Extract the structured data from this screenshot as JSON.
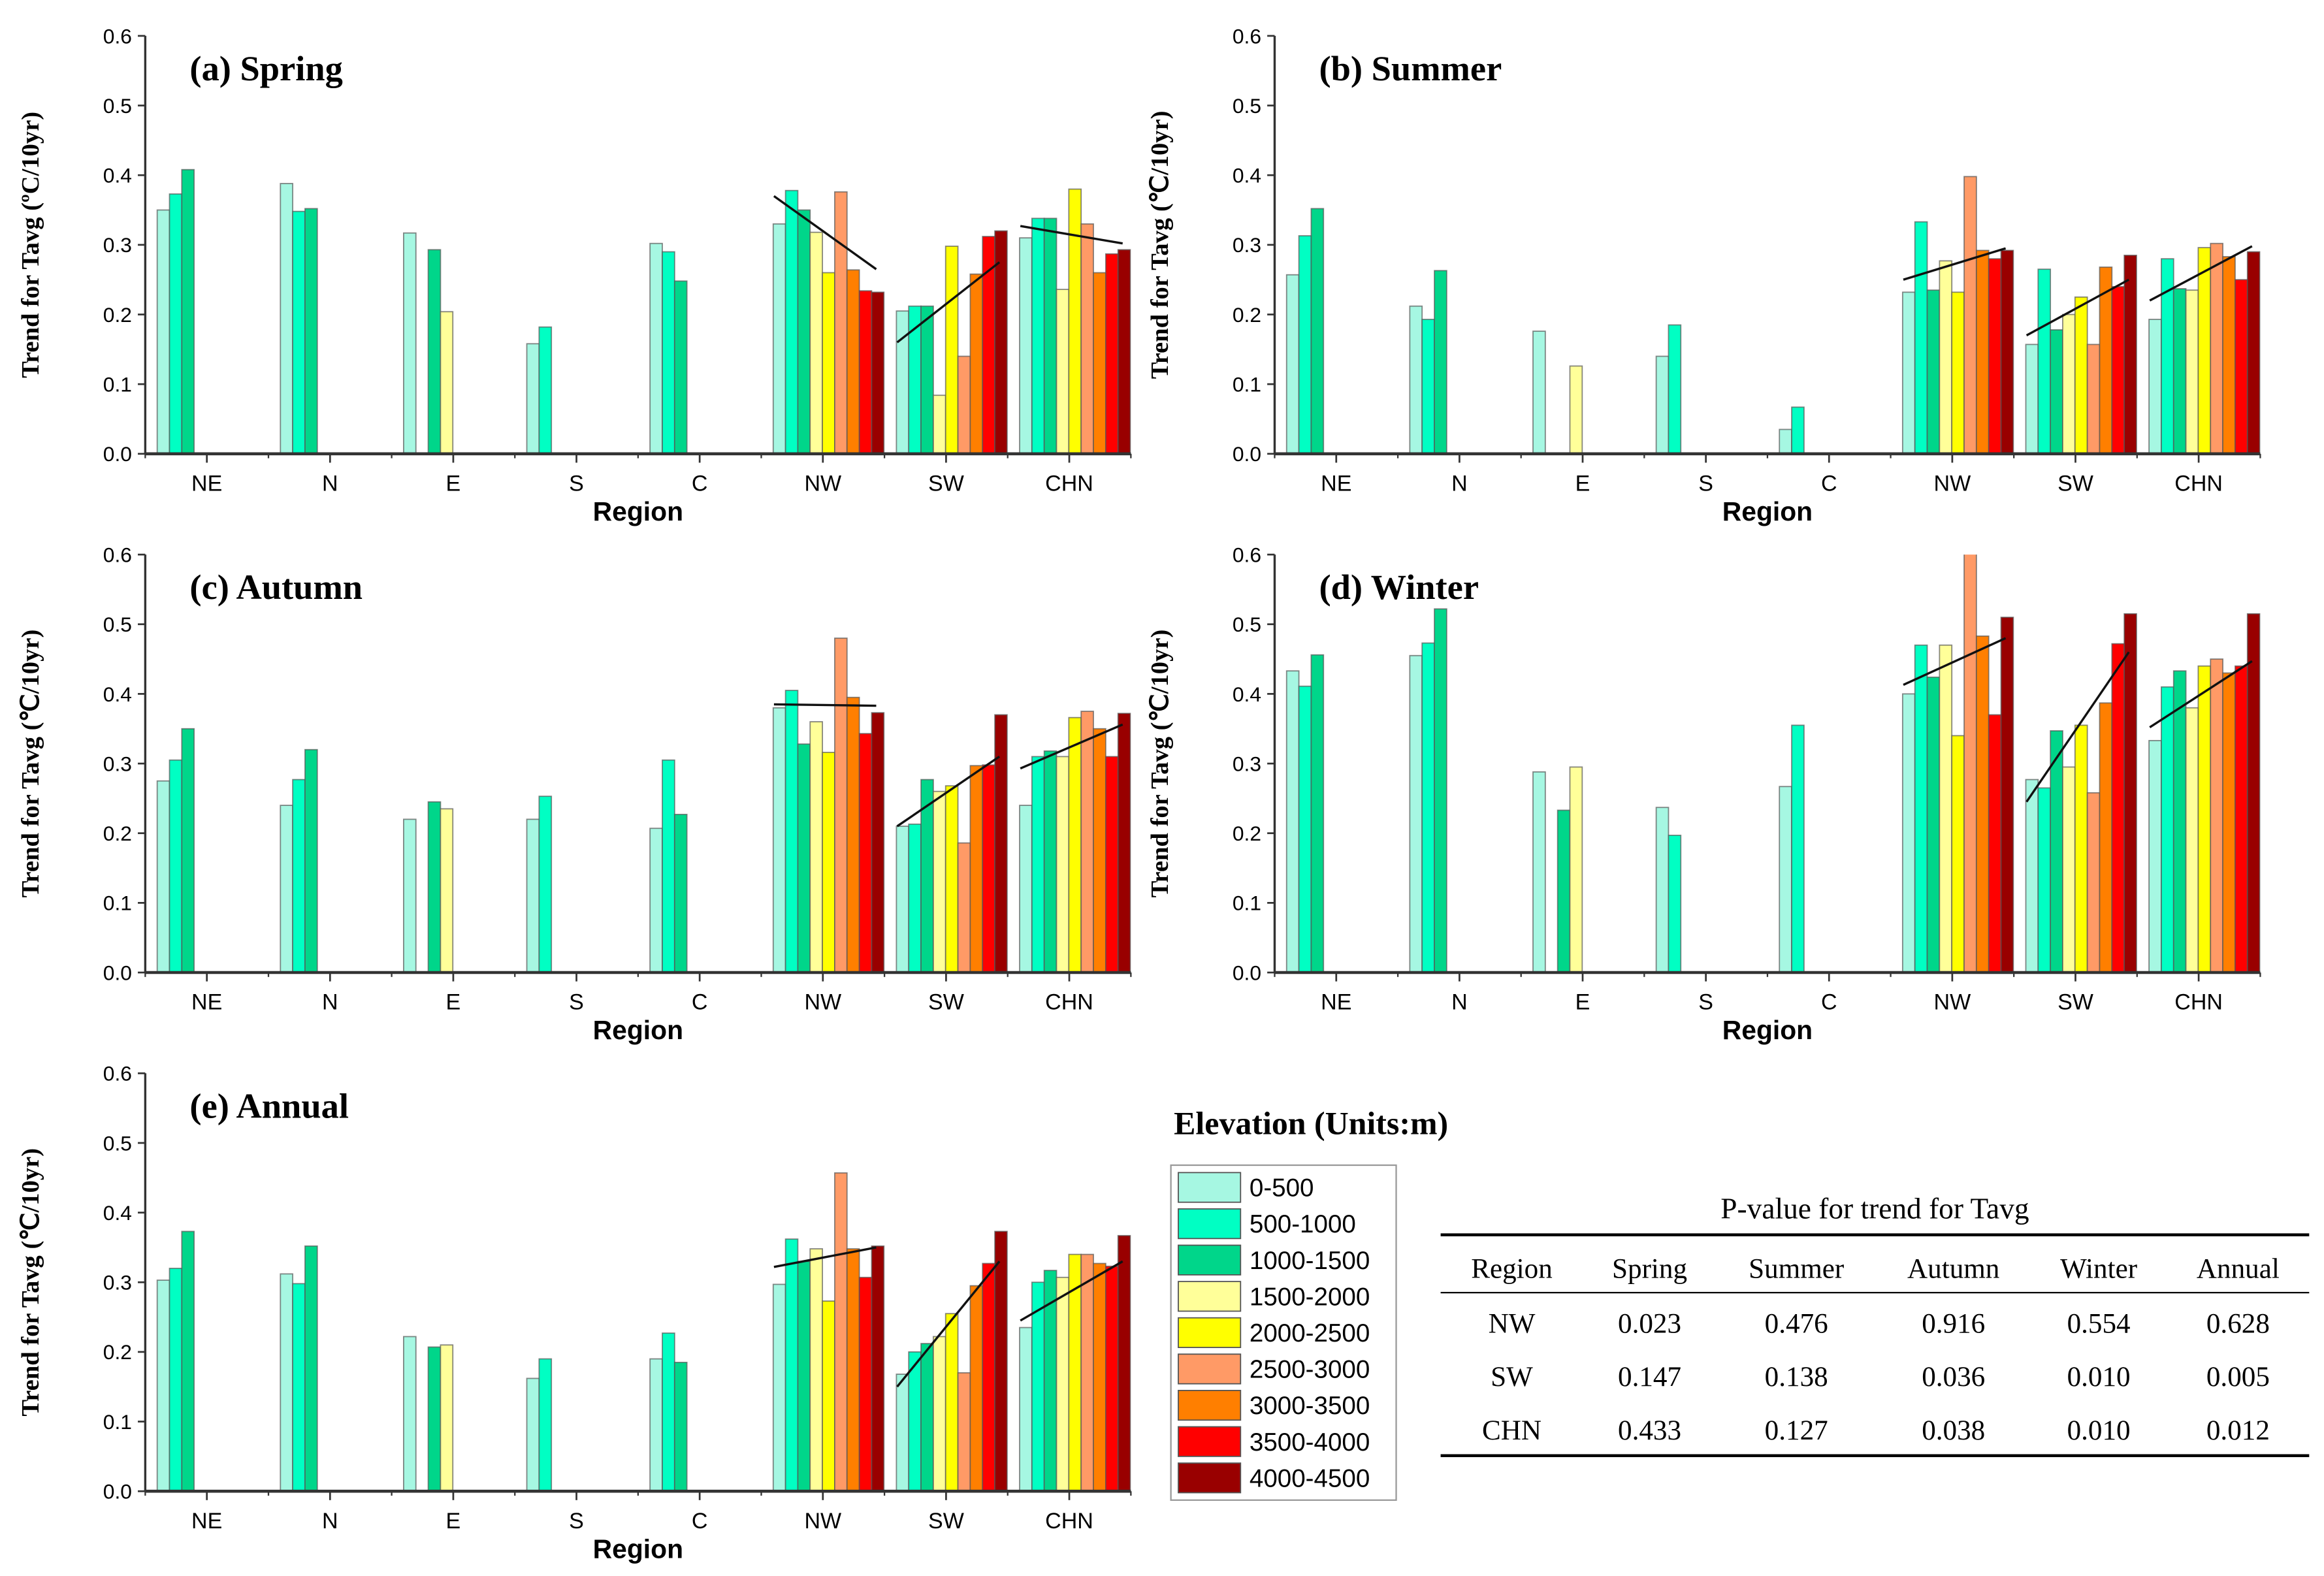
{
  "legend": {
    "title": "Elevation (Units:m)",
    "items": [
      "0-500",
      "500-1000",
      "1000-1500",
      "1500-2000",
      "2000-2500",
      "2500-3000",
      "3000-3500",
      "3500-4000",
      "4000-4500"
    ],
    "colors": [
      "#a6f7e2",
      "#00ffc3",
      "#00d68a",
      "#ffff99",
      "#ffff00",
      "#ff9a66",
      "#ff7f00",
      "#ff0000",
      "#990000"
    ]
  },
  "chart_data": [
    {
      "type": "bar",
      "title": "(a) Spring",
      "xlabel": "Region",
      "ylabel": "Trend for Tavg (ºC/10yr)",
      "ylim": [
        0,
        0.6
      ],
      "yticks": [
        "0.0",
        "0.1",
        "0.2",
        "0.3",
        "0.4",
        "0.5",
        "0.6"
      ],
      "categories": [
        "NE",
        "N",
        "E",
        "S",
        "C",
        "NW",
        "SW",
        "CHN"
      ],
      "values": [
        [
          0.35,
          0.373,
          0.408,
          null,
          null,
          null,
          null,
          null,
          null
        ],
        [
          0.388,
          0.348,
          0.352,
          null,
          null,
          null,
          null,
          null,
          null
        ],
        [
          0.317,
          null,
          0.293,
          0.204,
          null,
          null,
          null,
          null,
          null
        ],
        [
          0.158,
          0.182,
          null,
          null,
          null,
          null,
          null,
          null,
          null
        ],
        [
          0.302,
          0.29,
          0.248,
          null,
          null,
          null,
          null,
          null,
          null
        ],
        [
          0.33,
          0.378,
          0.35,
          0.318,
          0.26,
          0.376,
          0.264,
          0.234,
          0.232
        ],
        [
          0.205,
          0.212,
          0.212,
          0.084,
          0.298,
          0.14,
          0.258,
          0.312,
          0.32
        ],
        [
          0.31,
          0.338,
          0.338,
          0.236,
          0.38,
          0.33,
          0.26,
          0.287,
          0.293
        ]
      ],
      "trendlines": {
        "NW": [
          0.37,
          0.265
        ],
        "SW": [
          0.16,
          0.275
        ],
        "CHN": [
          0.327,
          0.302
        ]
      }
    },
    {
      "type": "bar",
      "title": "(b) Summer",
      "xlabel": "Region",
      "ylabel": "Trend for Tavg (℃/10yr)",
      "ylim": [
        0,
        0.6
      ],
      "yticks": [
        "0.0",
        "0.1",
        "0.2",
        "0.3",
        "0.4",
        "0.5",
        "0.6"
      ],
      "categories": [
        "NE",
        "N",
        "E",
        "S",
        "C",
        "NW",
        "SW",
        "CHN"
      ],
      "values": [
        [
          0.257,
          0.313,
          0.352,
          null,
          null,
          null,
          null,
          null,
          null
        ],
        [
          0.212,
          0.193,
          0.263,
          null,
          null,
          null,
          null,
          null,
          null
        ],
        [
          0.176,
          null,
          null,
          0.126,
          null,
          null,
          null,
          null,
          null
        ],
        [
          0.14,
          0.185,
          null,
          null,
          null,
          null,
          null,
          null,
          null
        ],
        [
          0.035,
          0.067,
          null,
          null,
          null,
          null,
          null,
          null,
          null
        ],
        [
          0.232,
          0.333,
          0.235,
          0.277,
          0.232,
          0.398,
          0.292,
          0.28,
          0.292
        ],
        [
          0.157,
          0.265,
          0.178,
          0.2,
          0.225,
          0.157,
          0.268,
          0.24,
          0.285
        ],
        [
          0.193,
          0.28,
          0.237,
          0.235,
          0.296,
          0.302,
          0.283,
          0.25,
          0.29
        ]
      ],
      "trendlines": {
        "NW": [
          0.25,
          0.295
        ],
        "SW": [
          0.17,
          0.25
        ],
        "CHN": [
          0.22,
          0.298
        ]
      }
    },
    {
      "type": "bar",
      "title": "(c) Autumn",
      "xlabel": "Region",
      "ylabel": "Trend for Tavg (℃/10yr)",
      "ylim": [
        0,
        0.6
      ],
      "yticks": [
        "0.0",
        "0.1",
        "0.2",
        "0.3",
        "0.4",
        "0.5",
        "0.6"
      ],
      "categories": [
        "NE",
        "N",
        "E",
        "S",
        "C",
        "NW",
        "SW",
        "CHN"
      ],
      "values": [
        [
          0.275,
          0.305,
          0.35,
          null,
          null,
          null,
          null,
          null,
          null
        ],
        [
          0.24,
          0.277,
          0.32,
          null,
          null,
          null,
          null,
          null,
          null
        ],
        [
          0.22,
          null,
          0.245,
          0.235,
          null,
          null,
          null,
          null,
          null
        ],
        [
          0.22,
          0.253,
          null,
          null,
          null,
          null,
          null,
          null,
          null
        ],
        [
          0.207,
          0.305,
          0.227,
          null,
          null,
          null,
          null,
          null,
          null
        ],
        [
          0.38,
          0.405,
          0.328,
          0.36,
          0.316,
          0.48,
          0.395,
          0.343,
          0.373
        ],
        [
          0.21,
          0.213,
          0.277,
          0.26,
          0.268,
          0.186,
          0.297,
          0.298,
          0.37
        ],
        [
          0.24,
          0.31,
          0.318,
          0.31,
          0.366,
          0.375,
          0.35,
          0.31,
          0.372
        ]
      ],
      "trendlines": {
        "NW": [
          0.385,
          0.383
        ],
        "SW": [
          0.21,
          0.31
        ],
        "CHN": [
          0.293,
          0.356
        ]
      }
    },
    {
      "type": "bar",
      "title": "(d) Winter",
      "xlabel": "Region",
      "ylabel": "Trend for Tavg (℃/10yr)",
      "ylim": [
        0,
        0.6
      ],
      "yticks": [
        "0.0",
        "0.1",
        "0.2",
        "0.3",
        "0.4",
        "0.5",
        "0.6"
      ],
      "categories": [
        "NE",
        "N",
        "E",
        "S",
        "C",
        "NW",
        "SW",
        "CHN"
      ],
      "values": [
        [
          0.433,
          0.411,
          0.456,
          null,
          null,
          null,
          null,
          null,
          null
        ],
        [
          0.455,
          0.473,
          0.522,
          null,
          null,
          null,
          null,
          null,
          null
        ],
        [
          0.288,
          null,
          0.233,
          0.295,
          null,
          null,
          null,
          null,
          null
        ],
        [
          0.237,
          0.197,
          null,
          null,
          null,
          null,
          null,
          null,
          null
        ],
        [
          0.267,
          0.355,
          null,
          null,
          null,
          null,
          null,
          null,
          null
        ],
        [
          0.4,
          0.47,
          0.424,
          0.47,
          0.34,
          0.62,
          0.483,
          0.37,
          0.51
        ],
        [
          0.277,
          0.265,
          0.347,
          0.295,
          0.355,
          0.258,
          0.387,
          0.472,
          0.515
        ],
        [
          0.333,
          0.41,
          0.433,
          0.38,
          0.44,
          0.45,
          0.43,
          0.44,
          0.515
        ]
      ],
      "trendlines": {
        "NW": [
          0.413,
          0.48
        ],
        "SW": [
          0.245,
          0.46
        ],
        "CHN": [
          0.352,
          0.447
        ]
      }
    },
    {
      "type": "bar",
      "title": "(e) Annual",
      "xlabel": "Region",
      "ylabel": "Trend for Tavg (℃/10yr)",
      "ylim": [
        0,
        0.6
      ],
      "yticks": [
        "0.0",
        "0.1",
        "0.2",
        "0.3",
        "0.4",
        "0.5",
        "0.6"
      ],
      "categories": [
        "NE",
        "N",
        "E",
        "S",
        "C",
        "NW",
        "SW",
        "CHN"
      ],
      "values": [
        [
          0.303,
          0.32,
          0.373,
          null,
          null,
          null,
          null,
          null,
          null
        ],
        [
          0.312,
          0.298,
          0.352,
          null,
          null,
          null,
          null,
          null,
          null
        ],
        [
          0.222,
          null,
          0.207,
          0.21,
          null,
          null,
          null,
          null,
          null
        ],
        [
          0.162,
          0.19,
          null,
          null,
          null,
          null,
          null,
          null,
          null
        ],
        [
          0.19,
          0.227,
          0.185,
          null,
          null,
          null,
          null,
          null,
          null
        ],
        [
          0.297,
          0.362,
          0.33,
          0.348,
          0.273,
          0.457,
          0.348,
          0.307,
          0.352
        ],
        [
          0.168,
          0.2,
          0.212,
          0.222,
          0.255,
          0.17,
          0.295,
          0.327,
          0.373
        ],
        [
          0.235,
          0.3,
          0.317,
          0.307,
          0.34,
          0.34,
          0.327,
          0.323,
          0.367
        ]
      ],
      "trendlines": {
        "NW": [
          0.322,
          0.35
        ],
        "SW": [
          0.15,
          0.33
        ],
        "CHN": [
          0.245,
          0.33
        ]
      }
    }
  ],
  "table": {
    "title": "P-value for trend for Tavg",
    "headers": [
      "Region",
      "Spring",
      "Summer",
      "Autumn",
      "Winter",
      "Annual"
    ],
    "rows": [
      [
        "NW",
        "0.023",
        "0.476",
        "0.916",
        "0.554",
        "0.628"
      ],
      [
        "SW",
        "0.147",
        "0.138",
        "0.036",
        "0.010",
        "0.005"
      ],
      [
        "CHN",
        "0.433",
        "0.127",
        "0.038",
        "0.010",
        "0.012"
      ]
    ]
  }
}
